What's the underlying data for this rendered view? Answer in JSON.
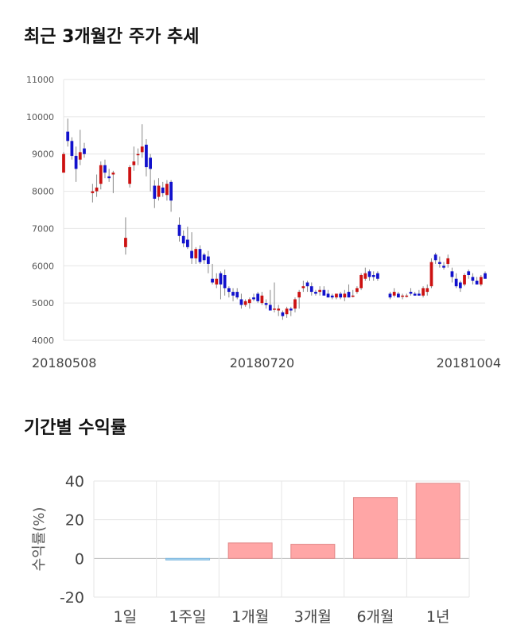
{
  "titles": {
    "stock": "최근 3개월간 주가 추세",
    "returns": "기간별 수익률"
  },
  "chart_data": [
    {
      "type": "candlestick",
      "title": "최근 3개월간 주가 추세",
      "ylim": [
        4000,
        11000
      ],
      "y_ticks": [
        4000,
        5000,
        6000,
        7000,
        8000,
        9000,
        10000,
        11000
      ],
      "x_tick_labels": [
        {
          "label": "20180508",
          "index": 0
        },
        {
          "label": "20180720",
          "index": 48
        },
        {
          "label": "20181004",
          "index": 98
        }
      ],
      "grid": true,
      "colors": {
        "up": "#cc1111",
        "down": "#1111cc"
      },
      "candles": [
        [
          8500,
          9050,
          8500,
          9000
        ],
        [
          9600,
          9950,
          9200,
          9350
        ],
        [
          9350,
          9450,
          8850,
          8950
        ],
        [
          8950,
          9200,
          8250,
          8600
        ],
        [
          8850,
          9650,
          8700,
          9050
        ],
        [
          9150,
          9300,
          8900,
          9000
        ],
        null,
        [
          7950,
          8200,
          7700,
          8000
        ],
        [
          8000,
          8450,
          7850,
          8100
        ],
        [
          8200,
          8800,
          8050,
          8700
        ],
        [
          8700,
          8850,
          8350,
          8500
        ],
        [
          8400,
          8600,
          8250,
          8350
        ],
        [
          8450,
          8550,
          7950,
          8500
        ],
        null,
        null,
        [
          6500,
          7300,
          6300,
          6750
        ],
        [
          8200,
          8700,
          8100,
          8650
        ],
        [
          8700,
          9200,
          8550,
          8800
        ],
        [
          9000,
          9150,
          8700,
          9000
        ],
        [
          9050,
          9800,
          8900,
          9200
        ],
        [
          9250,
          9400,
          8400,
          8650
        ],
        [
          8900,
          9000,
          8000,
          8600
        ],
        [
          8150,
          8300,
          7550,
          7800
        ],
        [
          7850,
          8350,
          7750,
          8150
        ],
        [
          8100,
          8250,
          7850,
          7950
        ],
        [
          7900,
          8300,
          7750,
          8200
        ],
        [
          8250,
          8300,
          7450,
          7750
        ],
        null,
        [
          7100,
          7300,
          6650,
          6800
        ],
        [
          6800,
          6950,
          6500,
          6600
        ],
        [
          6700,
          7050,
          6450,
          6500
        ],
        [
          6400,
          6900,
          6050,
          6200
        ],
        [
          6200,
          6500,
          6050,
          6450
        ],
        [
          6450,
          6550,
          6050,
          6100
        ],
        [
          6300,
          6350,
          6050,
          6150
        ],
        [
          6250,
          6400,
          5800,
          6050
        ],
        [
          5650,
          6050,
          5500,
          5550
        ],
        [
          5500,
          5800,
          5400,
          5650
        ],
        [
          5800,
          5850,
          5100,
          5500
        ],
        [
          5750,
          5900,
          5200,
          5400
        ],
        [
          5400,
          5450,
          5150,
          5300
        ],
        [
          5300,
          5400,
          5050,
          5200
        ],
        [
          5300,
          5400,
          5100,
          5150
        ],
        [
          5100,
          5250,
          4850,
          4950
        ],
        [
          4950,
          5100,
          4900,
          5050
        ],
        [
          5000,
          5150,
          4850,
          5100
        ],
        [
          5150,
          5250,
          5050,
          5100
        ],
        [
          5250,
          5300,
          5000,
          5050
        ],
        [
          5000,
          5300,
          4950,
          5200
        ],
        [
          5000,
          5100,
          4850,
          4950
        ],
        [
          4950,
          5350,
          4850,
          4800
        ],
        [
          4850,
          5550,
          4750,
          4850
        ],
        [
          4800,
          4950,
          4650,
          4850
        ],
        [
          4750,
          4800,
          4550,
          4650
        ],
        [
          4700,
          4900,
          4600,
          4850
        ],
        [
          4850,
          4900,
          4650,
          4800
        ],
        [
          4850,
          5150,
          4750,
          5100
        ],
        [
          5150,
          5350,
          4850,
          5300
        ],
        [
          5400,
          5600,
          5300,
          5450
        ],
        [
          5550,
          5600,
          5300,
          5450
        ],
        [
          5450,
          5550,
          5200,
          5300
        ],
        [
          5300,
          5350,
          5200,
          5250
        ],
        [
          5300,
          5450,
          5200,
          5350
        ],
        [
          5350,
          5450,
          5250,
          5200
        ],
        [
          5250,
          5350,
          5150,
          5150
        ],
        [
          5200,
          5250,
          5100,
          5150
        ],
        [
          5150,
          5250,
          5100,
          5250
        ],
        [
          5250,
          5300,
          5100,
          5150
        ],
        [
          5150,
          5350,
          5050,
          5250
        ],
        [
          5300,
          5500,
          5150,
          5150
        ],
        [
          5200,
          5350,
          5150,
          5200
        ],
        [
          5300,
          5450,
          5250,
          5400
        ],
        [
          5400,
          5800,
          5350,
          5750
        ],
        [
          5650,
          5950,
          5600,
          5800
        ],
        [
          5850,
          5900,
          5600,
          5700
        ],
        [
          5750,
          5850,
          5600,
          5700
        ],
        [
          5800,
          5850,
          5600,
          5650
        ],
        null,
        null,
        [
          5250,
          5300,
          5100,
          5150
        ],
        [
          5200,
          5400,
          5150,
          5300
        ],
        [
          5250,
          5300,
          5150,
          5150
        ],
        [
          5200,
          5250,
          5100,
          5200
        ],
        [
          5200,
          5250,
          5150,
          5200
        ],
        [
          5300,
          5400,
          5200,
          5250
        ],
        [
          5250,
          5300,
          5200,
          5200
        ],
        [
          5250,
          5350,
          5200,
          5200
        ],
        [
          5200,
          5450,
          5150,
          5400
        ],
        [
          5300,
          5500,
          5200,
          5400
        ],
        [
          5450,
          6200,
          5400,
          6100
        ],
        [
          6300,
          6350,
          6050,
          6150
        ],
        [
          6100,
          6250,
          5950,
          6050
        ],
        [
          6000,
          6100,
          5900,
          5950
        ],
        [
          6050,
          6300,
          5950,
          6200
        ],
        [
          5850,
          5950,
          5550,
          5700
        ],
        [
          5650,
          5800,
          5400,
          5450
        ],
        [
          5550,
          5600,
          5300,
          5400
        ],
        [
          5500,
          5800,
          5450,
          5750
        ],
        [
          5850,
          5900,
          5650,
          5750
        ],
        [
          5700,
          5800,
          5500,
          5600
        ],
        [
          5600,
          5700,
          5500,
          5500
        ],
        [
          5500,
          5750,
          5450,
          5700
        ],
        [
          5800,
          5850,
          5650,
          5650
        ]
      ]
    },
    {
      "type": "bar",
      "title": "기간별 수익률",
      "ylabel": "수익률(%)",
      "categories": [
        "1일",
        "1주일",
        "1개월",
        "3개월",
        "6개월",
        "1년"
      ],
      "values": [
        0,
        -0.7,
        8,
        7.3,
        31.5,
        38.8
      ],
      "ylim": [
        -20,
        40
      ],
      "y_ticks": [
        -20,
        0,
        20,
        40
      ],
      "grid": true,
      "colors": {
        "positive": "#ffa6a6",
        "positive_stroke": "#e08888",
        "negative": "#a6d4f0",
        "negative_stroke": "#7fb8de"
      }
    }
  ]
}
